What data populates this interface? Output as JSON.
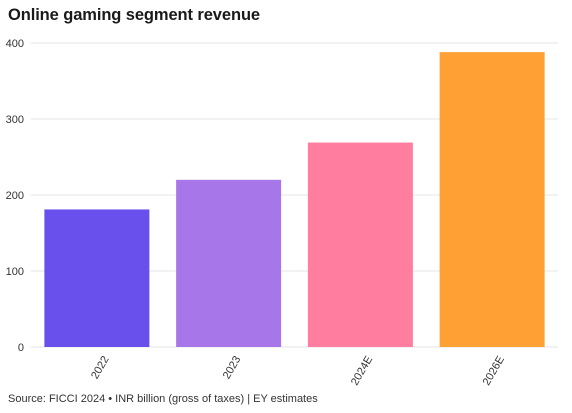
{
  "title": "Online gaming segment revenue",
  "footer": "Source: FICCI 2024 • INR billion (gross of taxes) | EY estimates",
  "chart_data": {
    "type": "bar",
    "categories": [
      "2022",
      "2023",
      "2024E",
      "2026E"
    ],
    "values": [
      181,
      220,
      269,
      388
    ],
    "colors": [
      "#6950ed",
      "#a777ea",
      "#ff7d9e",
      "#ffa035"
    ],
    "ylim": [
      0,
      400
    ],
    "yticks": [
      0,
      100,
      200,
      300,
      400
    ],
    "grid": true,
    "xlabel": "",
    "ylabel": ""
  }
}
